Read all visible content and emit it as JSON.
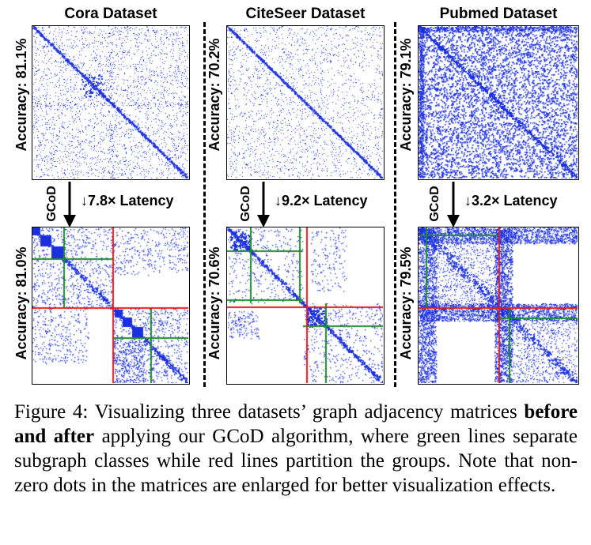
{
  "figure": {
    "datasets": [
      {
        "title": "Cora Dataset",
        "before_accuracy": "Accuracy: 81.1%",
        "after_accuracy": "Accuracy: 81.0%",
        "latency": "↓7.8× Latency"
      },
      {
        "title": "CiteSeer Dataset",
        "before_accuracy": "Accuracy: 70.2%",
        "after_accuracy": "Accuracy: 70.6%",
        "latency": "↓9.2× Latency"
      },
      {
        "title": "Pubmed Dataset",
        "before_accuracy": "Accuracy: 79.1%",
        "after_accuracy": "Accuracy: 79.5%",
        "latency": "↓3.2× Latency"
      }
    ],
    "method_label": "GCoD",
    "colors": {
      "dots": "#1a2fe0",
      "subgraph_lines": "#1e8a2e",
      "group_lines": "#e8191e"
    }
  },
  "caption": {
    "prefix": "Figure 4: Visualizing three datasets’ graph adjacency matrices ",
    "bold": "before and after",
    "suffix": " applying our GCoD algorithm, where green lines separate subgraph classes while red lines partition the groups. Note that non-zero dots in the matrices are enlarged for better visualization effects."
  }
}
